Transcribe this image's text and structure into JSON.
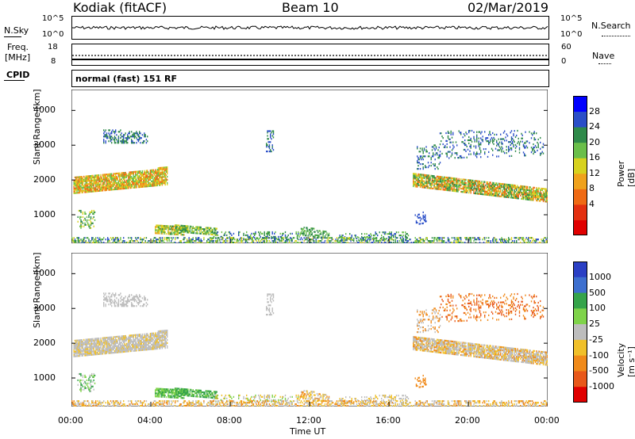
{
  "header": {
    "station": "Kodiak (fitACF)",
    "beam": "Beam 10",
    "date": "02/Mar/2019"
  },
  "top_panel": {
    "left_label": "N.Sky",
    "right_label": "N.Search",
    "left_ticks": [
      "10^5",
      "10^0"
    ],
    "right_ticks": [
      "10^5",
      "10^0"
    ]
  },
  "freq_panel": {
    "left_label_1": "Freq.",
    "left_label_2": "[MHz]",
    "right_label": "Nave",
    "left_ticks": [
      "18",
      "8"
    ],
    "right_ticks": [
      "60",
      "0"
    ]
  },
  "cpid": {
    "label": "CPID",
    "value": "normal (fast) 151 RF"
  },
  "chart_data": [
    {
      "type": "heatmap",
      "name": "power",
      "ylabel": "Slant Range [km]",
      "ylim": [
        180,
        4600
      ],
      "yticks": [
        "1000",
        "2000",
        "3000",
        "4000"
      ],
      "colorbar_label": "Power [dB]",
      "colorbar_ticks": [
        "4",
        "8",
        "12",
        "16",
        "20",
        "24",
        "28"
      ],
      "colors": [
        "#0000ff",
        "#2a4ec8",
        "#2f8a4a",
        "#6abf4a",
        "#d7d21e",
        "#f0a21c",
        "#ef6a14",
        "#e33010",
        "#e00000"
      ]
    },
    {
      "type": "heatmap",
      "name": "velocity",
      "ylabel": "Slant Range [km]",
      "ylim": [
        180,
        4600
      ],
      "yticks": [
        "1000",
        "2000",
        "3000",
        "4000"
      ],
      "xticks": [
        "00:00",
        "04:00",
        "08:00",
        "12:00",
        "16:00",
        "20:00",
        "00:00"
      ],
      "xlabel": "Time UT",
      "colorbar_label": "Velocity [m s⁻¹]",
      "colorbar_ticks": [
        "1000",
        "500",
        "100",
        "25",
        "-25",
        "-100",
        "-500",
        "-1000"
      ],
      "colors": [
        "#2a3fc4",
        "#3d6fcf",
        "#35a44a",
        "#7fd34a",
        "#bdbdbd",
        "#f0c02a",
        "#f08a1a",
        "#e8581a",
        "#e00000"
      ]
    }
  ]
}
